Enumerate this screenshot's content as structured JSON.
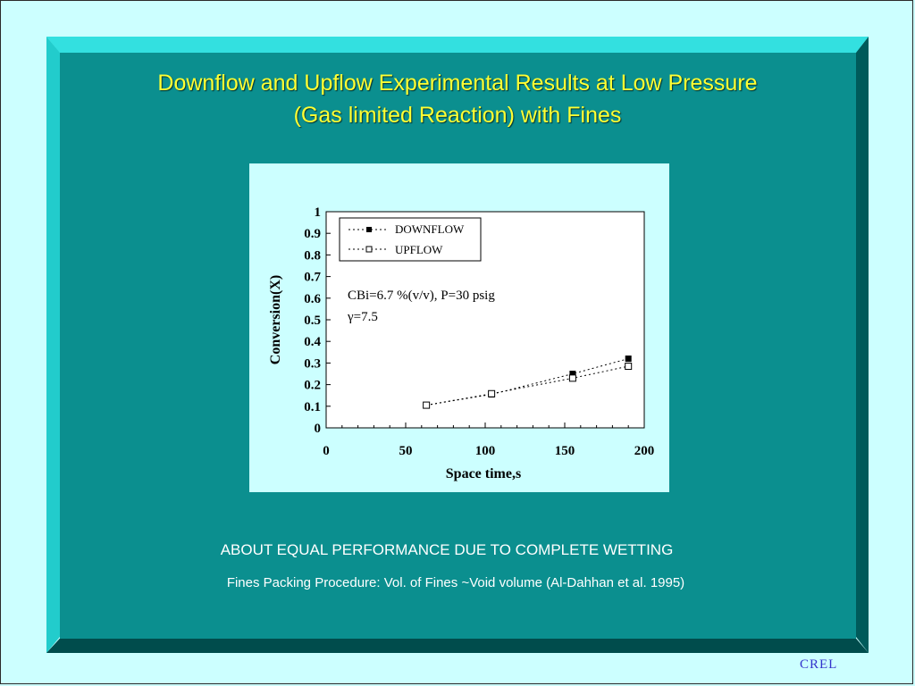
{
  "slide": {
    "title_line1": "Downflow and Upflow Experimental Results at Low Pressure",
    "title_line2": "(Gas limited Reaction) with Fines",
    "note_main": "ABOUT EQUAL PERFORMANCE  DUE TO COMPLETE WETTING",
    "note_sub": "Fines Packing Procedure: Vol. of Fines ~Void volume (Al-Dahhan et al. 1995)",
    "footer_logo": "CREL"
  },
  "colors": {
    "background": "#ccffff",
    "frame_face": "#0b8f8f",
    "title": "#ffff33",
    "footer": "#3333cc"
  },
  "chart_data": {
    "type": "scatter",
    "title": "",
    "xlabel": "Space time,s",
    "ylabel": "Conversion(X)",
    "xlim": [
      0,
      200
    ],
    "ylim": [
      0,
      1
    ],
    "x_ticks": [
      "0",
      "50",
      "100",
      "150",
      "200"
    ],
    "y_ticks": [
      "0",
      "0.1",
      "0.2",
      "0.3",
      "0.4",
      "0.5",
      "0.6",
      "0.7",
      "0.8",
      "0.9",
      "1"
    ],
    "grid": false,
    "legend_position": "top-left",
    "annotation_line1": "CBi=6.7 %(v/v), P=30 psig",
    "annotation_line2": "γ=7.5",
    "series": [
      {
        "name": "DOWNFLOW",
        "marker": "filled-square",
        "line": "dotted",
        "points": [
          [
            63,
            0.105
          ],
          [
            104,
            0.155
          ],
          [
            155,
            0.25
          ],
          [
            190,
            0.32
          ]
        ]
      },
      {
        "name": "UPFLOW",
        "marker": "open-square",
        "line": "dotted",
        "points": [
          [
            63,
            0.105
          ],
          [
            104,
            0.158
          ],
          [
            155,
            0.23
          ],
          [
            190,
            0.285
          ]
        ]
      }
    ]
  }
}
